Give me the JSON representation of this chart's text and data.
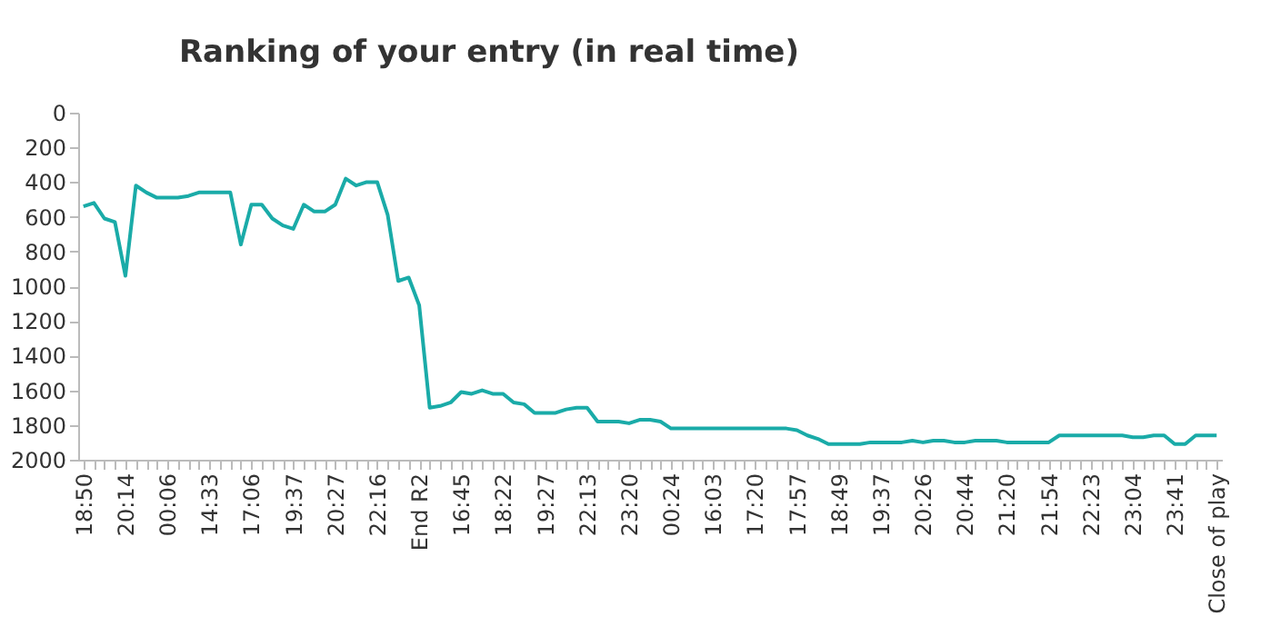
{
  "chart_data": {
    "type": "line",
    "title": "Ranking of your entry (in real time)",
    "categories": [
      "18:50",
      null,
      null,
      null,
      "20:14",
      null,
      null,
      null,
      "00:06",
      null,
      null,
      null,
      "14:33",
      null,
      null,
      null,
      "17:06",
      null,
      null,
      null,
      "19:37",
      null,
      null,
      null,
      "20:27",
      null,
      null,
      null,
      "22:16",
      null,
      null,
      null,
      "End R2",
      null,
      null,
      null,
      "16:45",
      null,
      null,
      null,
      "18:22",
      null,
      null,
      null,
      "19:27",
      null,
      null,
      null,
      "22:13",
      null,
      null,
      null,
      "23:20",
      null,
      null,
      null,
      "00:24",
      null,
      null,
      null,
      "16:03",
      null,
      null,
      null,
      "17:20",
      null,
      null,
      null,
      "17:57",
      null,
      null,
      null,
      "18:49",
      null,
      null,
      null,
      "19:37",
      null,
      null,
      null,
      "20:26",
      null,
      null,
      null,
      "20:44",
      null,
      null,
      null,
      "21:20",
      null,
      null,
      null,
      "21:54",
      null,
      null,
      null,
      "22:23",
      null,
      null,
      null,
      "23:04",
      null,
      null,
      null,
      "23:41",
      null,
      null,
      null,
      "Close of play"
    ],
    "series": [
      {
        "color": "#1aaba8",
        "values": [
          540,
          520,
          610,
          630,
          940,
          420,
          460,
          490,
          490,
          490,
          480,
          460,
          460,
          460,
          460,
          760,
          530,
          530,
          610,
          650,
          670,
          530,
          570,
          570,
          530,
          380,
          420,
          400,
          400,
          590,
          970,
          950,
          1110,
          1700,
          1690,
          1670,
          1610,
          1620,
          1600,
          1620,
          1620,
          1670,
          1680,
          1730,
          1730,
          1730,
          1710,
          1700,
          1700,
          1780,
          1780,
          1780,
          1790,
          1770,
          1770,
          1780,
          1820,
          1820,
          1820,
          1820,
          1820,
          1820,
          1820,
          1820,
          1820,
          1820,
          1820,
          1820,
          1830,
          1860,
          1880,
          1910,
          1910,
          1910,
          1910,
          1900,
          1900,
          1900,
          1900,
          1890,
          1900,
          1890,
          1890,
          1900,
          1900,
          1890,
          1890,
          1890,
          1900,
          1900,
          1900,
          1900,
          1900,
          1860,
          1860,
          1860,
          1860,
          1860,
          1860,
          1860,
          1870,
          1870,
          1860,
          1860,
          1910,
          1910,
          1860,
          1860,
          1860
        ]
      }
    ],
    "ylim": [
      2000,
      0
    ],
    "yticks": [
      0,
      200,
      400,
      600,
      800,
      1000,
      1200,
      1400,
      1600,
      1800,
      2000
    ],
    "grid": false,
    "marker": "none",
    "line_style": "solid"
  }
}
